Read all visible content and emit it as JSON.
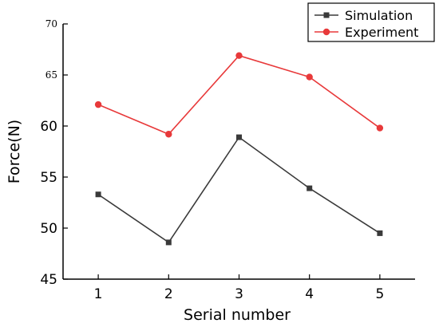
{
  "chart_data": {
    "type": "line",
    "xlabel": "Serial number",
    "ylabel": "Force(N)",
    "x": [
      1,
      2,
      3,
      4,
      5
    ],
    "xlim": [
      0.5,
      5.5
    ],
    "ylim": [
      45,
      70
    ],
    "yticks": [
      45,
      50,
      55,
      60,
      65,
      70
    ],
    "grid": false,
    "legend_position": "top-right",
    "series": [
      {
        "name": "Simulation",
        "values": [
          53.3,
          48.6,
          58.9,
          53.9,
          49.5
        ],
        "color": "#3a3a3a",
        "marker": "square"
      },
      {
        "name": "Experiment",
        "values": [
          62.1,
          59.2,
          66.9,
          64.8,
          59.8
        ],
        "color": "#e8393a",
        "marker": "circle"
      }
    ]
  }
}
